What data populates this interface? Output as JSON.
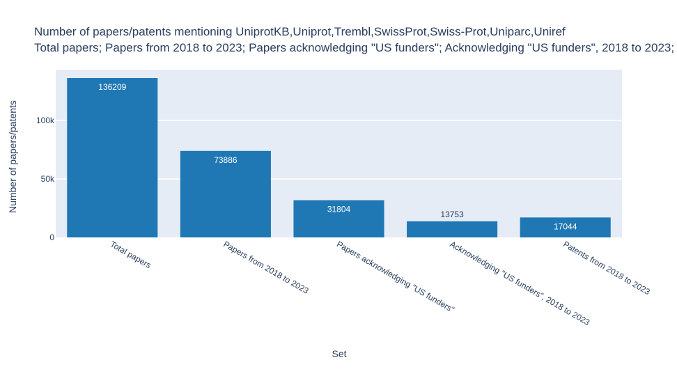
{
  "chart_data": {
    "type": "bar",
    "title_lines": [
      "Number of papers/patents mentioning UniprotKB,Uniprot,Trembl,SwissProt,Swiss-Prot,Uniparc,Uniref",
      "Total papers; Papers from 2018 to 2023; Papers acknowledging \"US funders\"; Acknowledging \"US funders\", 2018 to 2023; Patents from 2018 to 2023"
    ],
    "xlabel": "Set",
    "ylabel": "Number of papers/patents",
    "categories": [
      "Total papers",
      "Papers from 2018 to 2023",
      "Papers acknowledging \"US funders\"",
      "Acknowledging \"US funders\", 2018 to 2023",
      "Patents from 2018 to 2023"
    ],
    "values": [
      136209,
      73886,
      31804,
      13753,
      17044
    ],
    "value_labels": [
      "136209",
      "73886",
      "31804",
      "13753",
      "17044"
    ],
    "ylim": [
      0,
      143378
    ],
    "yticks": [
      0,
      50000,
      100000
    ],
    "ytick_labels": [
      "0",
      "50k",
      "100k"
    ],
    "grid": true,
    "legend": "none",
    "colors": {
      "bar": "#1f77b4",
      "plot_background": "#e5ecf6",
      "grid": "#ffffff",
      "text": "#2a3f5f"
    }
  }
}
